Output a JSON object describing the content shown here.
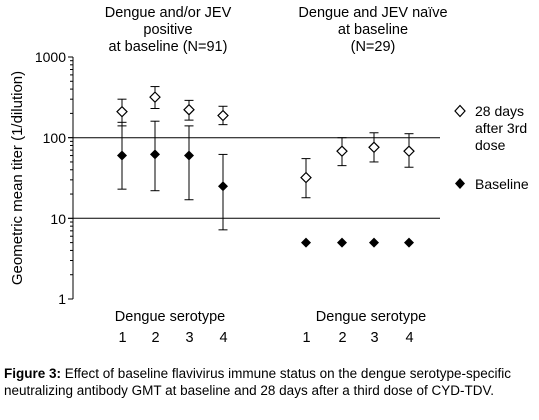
{
  "caption": {
    "label": "Figure 3:",
    "text": "Effect of baseline flavivirus immune status on the dengue serotype-specific neutralizing antibody GMT at baseline and 28 days after a third dose of CYD-TDV."
  },
  "chart_data": {
    "type": "scatter",
    "ylabel": "Geometric mean titer (1/dilution)",
    "yscale": "log",
    "ylim": [
      1,
      1000
    ],
    "yticks": [
      "1",
      "10",
      "100",
      "1000"
    ],
    "gridlines": [
      10,
      100
    ],
    "groups": [
      {
        "title_lines": [
          "Dengue and/or JEV",
          "positive",
          "at baseline (N=91)"
        ],
        "xlabel": "Dengue serotype",
        "categories": [
          "1",
          "2",
          "3",
          "4"
        ]
      },
      {
        "title_lines": [
          "Dengue and JEV naïve",
          "at baseline",
          "(N=29)"
        ],
        "xlabel": "Dengue serotype",
        "categories": [
          "1",
          "2",
          "3",
          "4"
        ]
      }
    ],
    "legend_position": "right",
    "series": [
      {
        "name_lines": [
          "28 days",
          "after 3rd",
          "dose"
        ],
        "marker": "open-diamond",
        "values": [
          [
            210,
            318,
            222,
            188
          ],
          [
            32,
            68,
            76,
            68
          ]
        ],
        "error_low": [
          [
            140,
            230,
            165,
            145
          ],
          [
            18,
            45,
            50,
            43
          ]
        ],
        "error_high": [
          [
            300,
            430,
            290,
            245
          ],
          [
            55,
            100,
            115,
            112
          ]
        ]
      },
      {
        "name_lines": [
          "Baseline"
        ],
        "marker": "filled-diamond",
        "values": [
          [
            60,
            62,
            60,
            25
          ],
          [
            5,
            5,
            5,
            5
          ]
        ],
        "error_low": [
          [
            23,
            22,
            17,
            7.2
          ],
          [
            null,
            null,
            null,
            null
          ]
        ],
        "error_high": [
          [
            155,
            160,
            140,
            62
          ],
          [
            null,
            null,
            null,
            null
          ]
        ]
      }
    ]
  }
}
